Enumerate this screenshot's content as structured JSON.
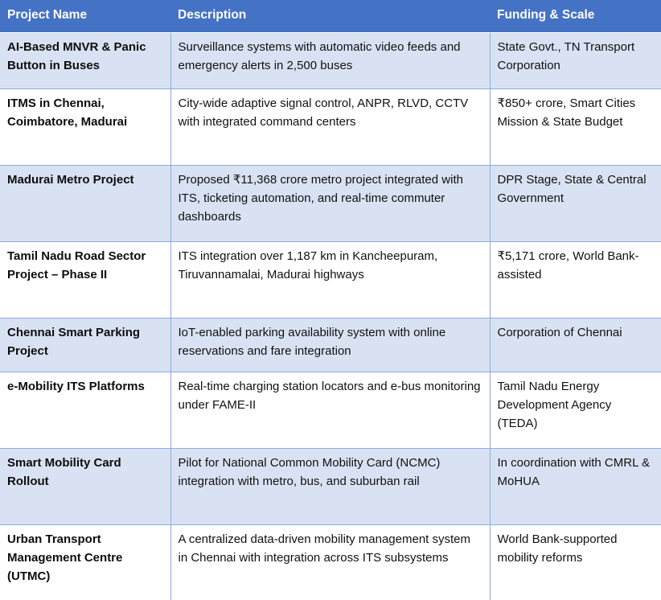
{
  "table": {
    "columns": [
      {
        "label": "Project Name"
      },
      {
        "label": "Description"
      },
      {
        "label": "Funding & Scale"
      }
    ],
    "rows": [
      {
        "name": "AI-Based MNVR & Panic Button in Buses",
        "description": "Surveillance systems with automatic video feeds and emergency alerts in 2,500 buses",
        "funding": "State Govt., TN Transport Corporation"
      },
      {
        "name": "ITMS in Chennai, Coimbatore, Madurai",
        "description": "City-wide adaptive signal control, ANPR, RLVD, CCTV with integrated command centers",
        "funding": "₹850+ crore, Smart Cities Mission & State Budget"
      },
      {
        "name": "Madurai Metro Project",
        "description": "Proposed ₹11,368 crore metro project integrated with ITS, ticketing automation, and real-time commuter dashboards",
        "funding": "DPR Stage, State & Central Government"
      },
      {
        "name": "Tamil Nadu Road Sector Project – Phase II",
        "description": "ITS integration over 1,187 km in Kancheepuram, Tiruvannamalai, Madurai highways",
        "funding": "₹5,171 crore, World Bank-assisted"
      },
      {
        "name": "Chennai Smart Parking Project",
        "description": "IoT-enabled parking availability system with online reservations and fare integration",
        "funding": "Corporation of Chennai"
      },
      {
        "name": "e-Mobility ITS Platforms",
        "description": "Real-time charging station locators and e-bus monitoring under FAME-II",
        "funding": "Tamil Nadu Energy Development Agency (TEDA)"
      },
      {
        "name": "Smart Mobility Card Rollout",
        "description": "Pilot for National Common Mobility Card (NCMC) integration with metro, bus, and suburban rail",
        "funding": "In coordination with CMRL & MoHUA"
      },
      {
        "name": "Urban Transport Management Centre (UTMC)",
        "description": "A centralized data-driven mobility management system in Chennai with integration across ITS subsystems",
        "funding": "World Bank-supported mobility reforms"
      }
    ]
  },
  "colors": {
    "header_bg": "#4472C4",
    "header_text": "#FFFFFF",
    "banded_row_bg": "#D9E2F3",
    "plain_row_bg": "#FFFFFF",
    "border": "#8EAADB",
    "body_text": "#111111"
  }
}
